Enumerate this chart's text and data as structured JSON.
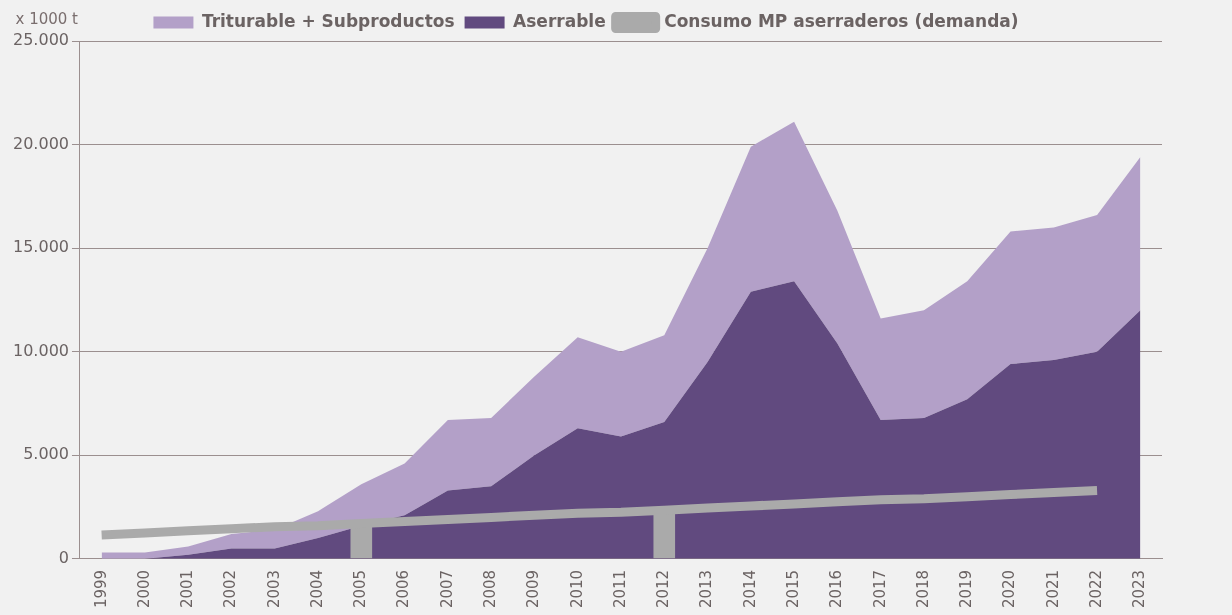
{
  "chart_data": {
    "type": "area",
    "ylabel": "x 1000 t",
    "stacked": true,
    "grid": "y",
    "legend": "top",
    "categories": [
      "1999",
      "2000",
      "2001",
      "2002",
      "2003",
      "2004",
      "2005",
      "2006",
      "2007",
      "2008",
      "2009",
      "2010",
      "2011",
      "2012",
      "2013",
      "2014",
      "2015",
      "2016",
      "2017",
      "2018",
      "2019",
      "2020",
      "2021",
      "2022",
      "2023"
    ],
    "ylim": [
      0,
      25000
    ],
    "yticks": [
      {
        "value": 0,
        "label": "0"
      },
      {
        "value": 5000,
        "label": "5.000"
      },
      {
        "value": 10000,
        "label": "10.000"
      },
      {
        "value": 15000,
        "label": "15.000"
      },
      {
        "value": 20000,
        "label": "20.000"
      },
      {
        "value": 25000,
        "label": "25.000"
      }
    ],
    "series": [
      {
        "name": "Aserrable",
        "color": "#614a7f",
        "values": [
          0,
          0,
          200,
          500,
          500,
          1000,
          1600,
          2100,
          3300,
          3500,
          5000,
          6300,
          5900,
          6600,
          9500,
          12900,
          13400,
          10400,
          6700,
          6800,
          7700,
          9400,
          9600,
          10000,
          12000
        ]
      },
      {
        "name": "Triturable + Subproductos",
        "color": "#b3a0c8",
        "values": [
          300,
          300,
          400,
          700,
          900,
          1300,
          2000,
          2500,
          3400,
          3300,
          3800,
          4400,
          4100,
          4200,
          5500,
          7000,
          7700,
          6400,
          4900,
          5200,
          5700,
          6400,
          6400,
          6600,
          7400
        ]
      },
      {
        "name": "Consumo MP aserraderos (demanda)",
        "type": "line",
        "color": "#aaaaaa",
        "values": [
          1150,
          1250,
          1350,
          1450,
          1550,
          1600,
          1700,
          1800,
          1900,
          2000,
          2100,
          2200,
          2250,
          2350,
          2450,
          2550,
          2650,
          2750,
          2850,
          2900,
          3000,
          3100,
          3200,
          3300,
          null
        ]
      },
      {
        "type": "bar",
        "color": "#aaaaaa",
        "values": [
          null,
          null,
          null,
          null,
          null,
          null,
          1700,
          null,
          null,
          null,
          null,
          null,
          null,
          2350,
          null,
          null,
          null,
          null,
          null,
          null,
          null,
          null,
          null,
          null,
          null
        ]
      }
    ]
  }
}
